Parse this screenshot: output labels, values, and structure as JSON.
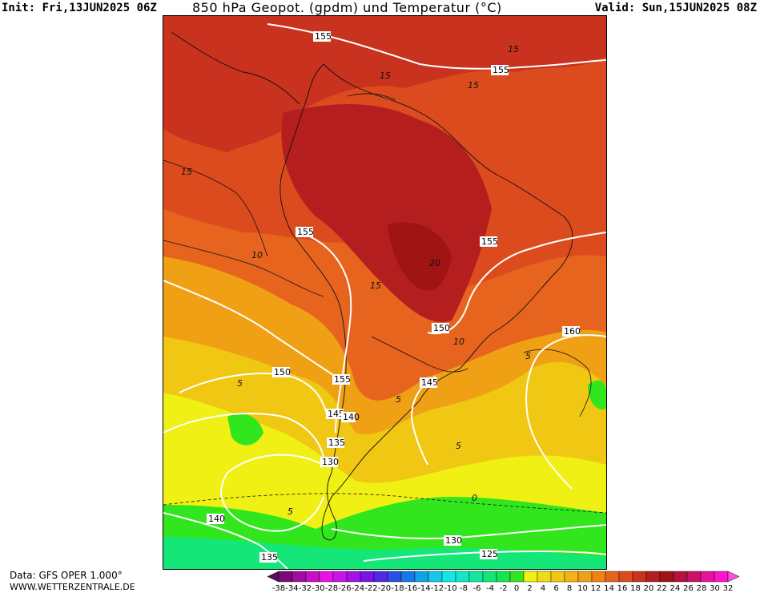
{
  "header": {
    "init": "Init: Fri,13JUN2025 06Z",
    "title": "850 hPa Geopot. (gpdm) und Temperatur (°C)",
    "valid": "Valid: Sun,15JUN2025 08Z"
  },
  "footer": {
    "data_source": "Data: GFS OPER 1.000°",
    "website": "WWW.WETTERZENTRALE.DE"
  },
  "legend": {
    "values": [
      "-38",
      "-34",
      "-32",
      "-30",
      "-28",
      "-26",
      "-24",
      "-22",
      "-20",
      "-18",
      "-16",
      "-14",
      "-12",
      "-10",
      "-8",
      "-6",
      "-4",
      "-2",
      "0",
      "2",
      "4",
      "6",
      "8",
      "10",
      "12",
      "14",
      "16",
      "18",
      "20",
      "22",
      "24",
      "26",
      "28",
      "30",
      "32"
    ],
    "colors": [
      "#5a0a5a",
      "#7a0a7a",
      "#a00ca0",
      "#c80fc8",
      "#e614e6",
      "#c814e6",
      "#a014e6",
      "#7814e6",
      "#5028e6",
      "#2850e6",
      "#1478e6",
      "#14a0e6",
      "#14c8e6",
      "#14e6e6",
      "#14e6c8",
      "#14e6a0",
      "#14e678",
      "#14e650",
      "#32e61e",
      "#f0f014",
      "#f0dc14",
      "#f0c814",
      "#f0b414",
      "#f0a014",
      "#f08214",
      "#e6641e",
      "#dc4b1e",
      "#c8321e",
      "#b41e1e",
      "#a01414",
      "#b4143c",
      "#c81464",
      "#e6149c",
      "#ff14c8",
      "#ff50e6"
    ]
  },
  "map": {
    "geopotential_labels": [
      "155",
      "155",
      "155",
      "155",
      "150",
      "160",
      "150",
      "155",
      "145",
      "145",
      "140",
      "135",
      "130",
      "140",
      "130",
      "125",
      "135"
    ],
    "temperature_labels": [
      "15",
      "15",
      "15",
      "15",
      "10",
      "15",
      "20",
      "10",
      "5",
      "5",
      "5",
      "5",
      "0",
      "5"
    ],
    "temperature_colors": {
      "t0": "#1ee664",
      "t2": "#f0f014",
      "t5": "#f0c814",
      "t8": "#f0a014",
      "t10": "#f08214",
      "t12": "#e6641e",
      "t15": "#c8321e",
      "t18": "#b41e1e",
      "t20": "#a01414",
      "t_cold": "#14e6a0"
    }
  }
}
